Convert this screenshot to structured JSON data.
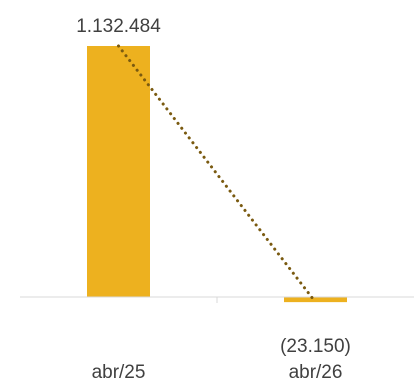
{
  "chart_data": {
    "type": "bar",
    "categories": [
      "abr/25",
      "abr/26"
    ],
    "values": [
      1132484,
      -23150
    ],
    "data_labels": [
      "1.132.484",
      "(23.150)"
    ],
    "ylim": [
      -30000,
      1150000
    ],
    "grid": false,
    "legend": "none",
    "trendline": {
      "style": "dotted",
      "from_value": 1132484,
      "to_value": -23150
    },
    "colors": {
      "bar": "#EDB11F",
      "trendline": "#7A5A10",
      "axis": "#D9D9D9",
      "text": "#404040"
    }
  }
}
